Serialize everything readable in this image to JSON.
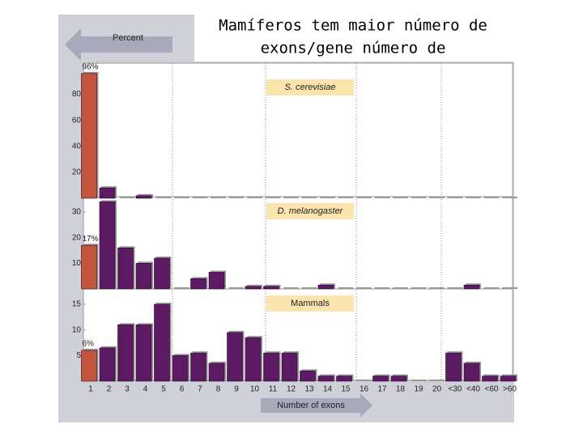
{
  "title": "Mamíferos tem maior número de exons/gene número de",
  "ylabel": "Percent",
  "xlabel": "Number of exons",
  "chart_data": [
    {
      "type": "bar",
      "title": "S. cerevisiae",
      "categories": [
        "1",
        "2",
        "3",
        "4",
        "5",
        "6",
        "7",
        "8",
        "9",
        "10",
        "11",
        "12",
        "13",
        "14",
        "15",
        "16",
        "17",
        "18",
        "19",
        "20",
        "<30",
        "<40",
        "<60",
        ">60"
      ],
      "values": [
        96,
        8,
        0,
        2,
        0,
        0,
        0,
        0,
        0,
        0,
        0,
        0,
        0,
        0,
        0,
        0,
        0,
        0,
        0,
        0,
        0,
        0,
        0,
        0
      ],
      "value_labels": [
        "96%",
        null,
        null,
        null,
        null,
        null,
        null,
        null,
        null,
        null,
        null,
        null,
        null,
        null,
        null,
        null,
        null,
        null,
        null,
        null,
        null,
        null,
        null,
        null
      ],
      "colors": [
        "#c4553d",
        "#5b1a62",
        "#5b1a62",
        "#5b1a62",
        "#5b1a62",
        "#5b1a62",
        "#5b1a62",
        "#5b1a62",
        "#5b1a62",
        "#5b1a62",
        "#5b1a62",
        "#5b1a62",
        "#5b1a62",
        "#5b1a62",
        "#5b1a62",
        "#5b1a62",
        "#5b1a62",
        "#5b1a62",
        "#5b1a62",
        "#5b1a62",
        "#5b1a62",
        "#5b1a62",
        "#5b1a62",
        "#5b1a62"
      ],
      "ylim": [
        0,
        104
      ],
      "yticks": [
        20,
        40,
        60,
        80
      ]
    },
    {
      "type": "bar",
      "title": "D. melanogaster",
      "categories": [
        "1",
        "2",
        "3",
        "4",
        "5",
        "6",
        "7",
        "8",
        "9",
        "10",
        "11",
        "12",
        "13",
        "14",
        "15",
        "16",
        "17",
        "18",
        "19",
        "20",
        "<30",
        "<40",
        "<60",
        ">60"
      ],
      "values": [
        17,
        34,
        16,
        10,
        12,
        0,
        4,
        6.5,
        0,
        1,
        1,
        0,
        0,
        1.5,
        0,
        0,
        0,
        0,
        0,
        0,
        0,
        1.5,
        0,
        0
      ],
      "value_labels": [
        "17%",
        null,
        null,
        null,
        null,
        null,
        null,
        null,
        null,
        null,
        null,
        null,
        null,
        null,
        null,
        null,
        null,
        null,
        null,
        null,
        null,
        null,
        null,
        null
      ],
      "colors": [
        "#c4553d",
        "#5b1a62",
        "#5b1a62",
        "#5b1a62",
        "#5b1a62",
        "#5b1a62",
        "#5b1a62",
        "#5b1a62",
        "#5b1a62",
        "#5b1a62",
        "#5b1a62",
        "#5b1a62",
        "#5b1a62",
        "#5b1a62",
        "#5b1a62",
        "#5b1a62",
        "#5b1a62",
        "#5b1a62",
        "#5b1a62",
        "#5b1a62",
        "#5b1a62",
        "#5b1a62",
        "#5b1a62",
        "#5b1a62"
      ],
      "ylim": [
        0,
        36
      ],
      "yticks": [
        10,
        20,
        30
      ]
    },
    {
      "type": "bar",
      "title": "Mammals",
      "categories": [
        "1",
        "2",
        "3",
        "4",
        "5",
        "6",
        "7",
        "8",
        "9",
        "10",
        "11",
        "12",
        "13",
        "14",
        "15",
        "16",
        "17",
        "18",
        "19",
        "20",
        "<30",
        "<40",
        "<60",
        ">60"
      ],
      "values": [
        6,
        6.5,
        11,
        11,
        15,
        5,
        5.5,
        3.5,
        9.5,
        8.5,
        5.5,
        5.5,
        2,
        1,
        1,
        0,
        1,
        1,
        0,
        0,
        5.5,
        3.5,
        1,
        1
      ],
      "value_labels": [
        "6%",
        null,
        null,
        null,
        null,
        null,
        null,
        null,
        null,
        null,
        null,
        null,
        null,
        null,
        null,
        null,
        null,
        null,
        null,
        null,
        null,
        null,
        null,
        null
      ],
      "colors": [
        "#c4553d",
        "#5b1a62",
        "#5b1a62",
        "#5b1a62",
        "#5b1a62",
        "#5b1a62",
        "#5b1a62",
        "#5b1a62",
        "#5b1a62",
        "#5b1a62",
        "#5b1a62",
        "#5b1a62",
        "#5b1a62",
        "#5b1a62",
        "#5b1a62",
        "#5b1a62",
        "#5b1a62",
        "#5b1a62",
        "#5b1a62",
        "#5b1a62",
        "#5b1a62",
        "#5b1a62",
        "#5b1a62",
        "#5b1a62"
      ],
      "ylim": [
        0,
        18
      ],
      "yticks": [
        5,
        10,
        15
      ]
    }
  ]
}
